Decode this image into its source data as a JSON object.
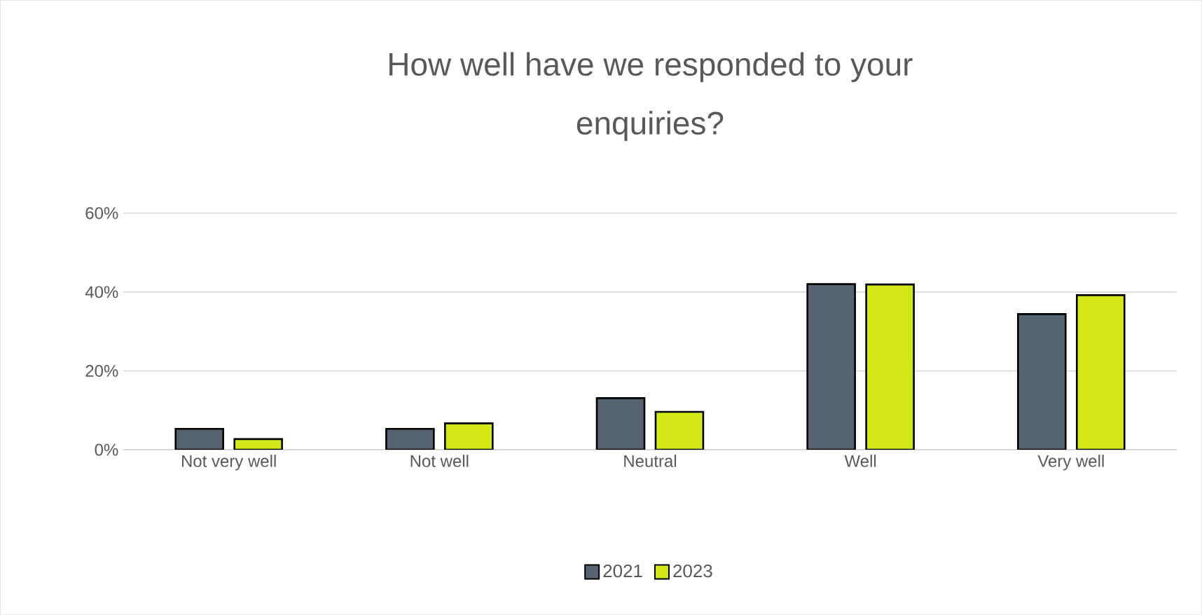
{
  "chart_data": {
    "type": "bar",
    "title": "How well have we responded to your enquiries?",
    "categories": [
      "Not very well",
      "Not well",
      "Neutral",
      "Well",
      "Very well"
    ],
    "series": [
      {
        "name": "2021",
        "color": "#556270",
        "values": [
          5.3,
          5.3,
          13.1,
          42.0,
          34.4
        ]
      },
      {
        "name": "2023",
        "color": "#d4e815",
        "values": [
          2.7,
          6.7,
          9.6,
          41.9,
          39.2
        ]
      }
    ],
    "ylim": [
      0,
      60
    ],
    "yticks": [
      {
        "value": 0,
        "label": "0%"
      },
      {
        "value": 20,
        "label": "20%"
      },
      {
        "value": 40,
        "label": "40%"
      },
      {
        "value": 60,
        "label": "60%"
      }
    ],
    "grid": "y",
    "legend": "bottom"
  }
}
